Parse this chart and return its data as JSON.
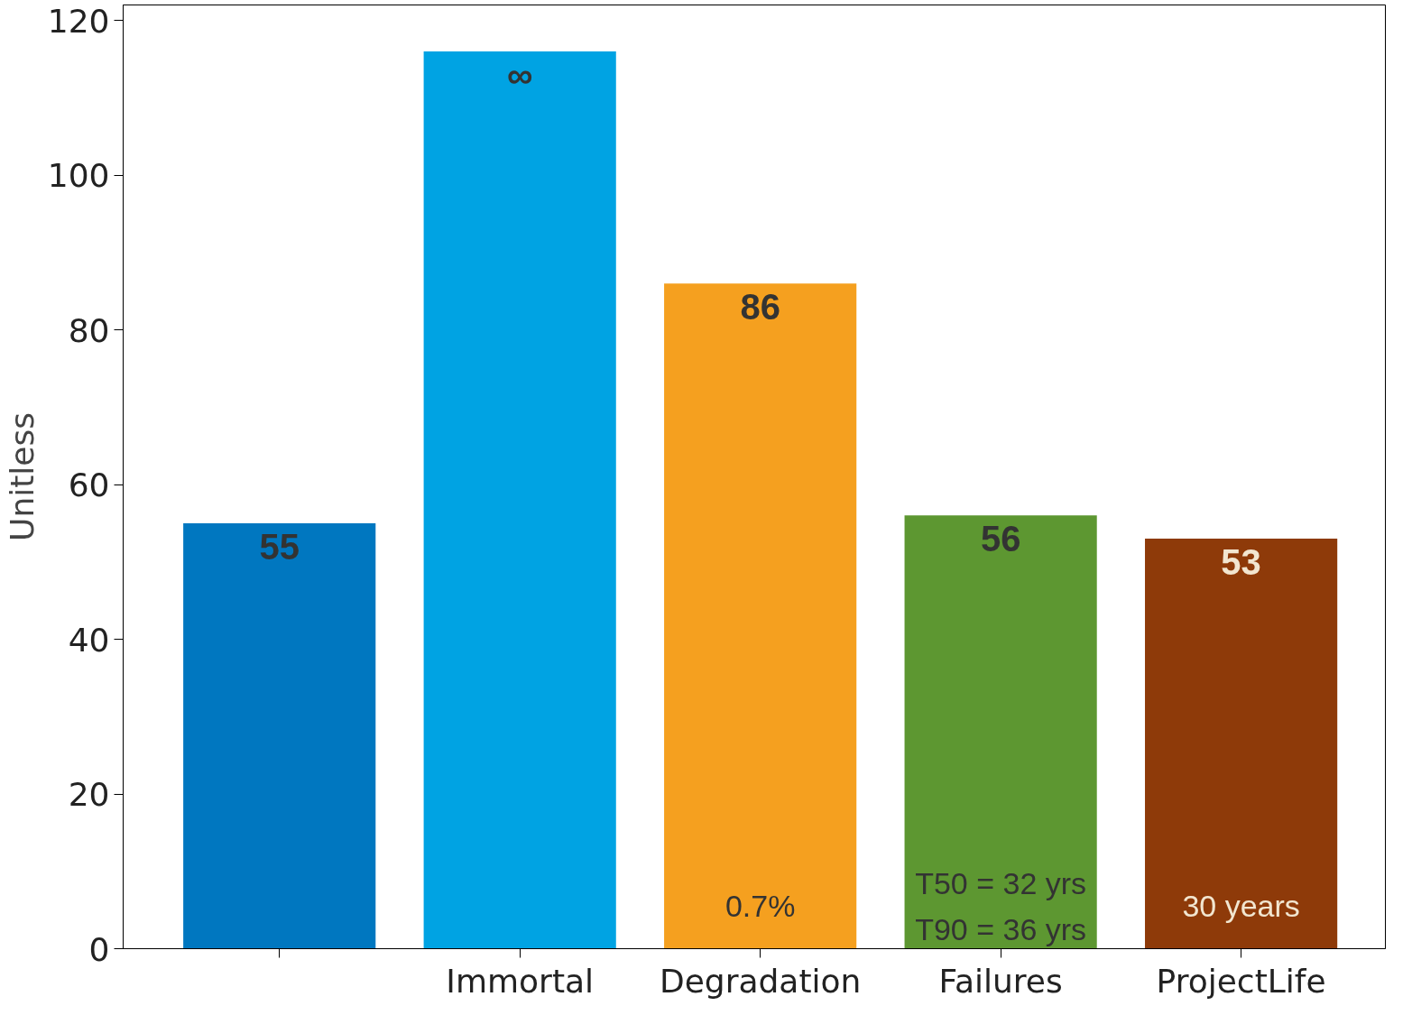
{
  "chart_data": {
    "type": "bar",
    "ylabel": "Unitless",
    "categories": [
      null,
      "Immortal",
      "Degradation",
      "Failures",
      "ProjectLife"
    ],
    "values": [
      55,
      116,
      86,
      56,
      53
    ],
    "colors": [
      "#0077c0",
      "#00a3e3",
      "#f5a01f",
      "#5d9731",
      "#8e3a09"
    ],
    "value_labels": [
      "55",
      "∞",
      "86",
      "56",
      "53"
    ],
    "annotations": [
      "0.7%",
      "T50 = 32 yrs\nT90 = 36 yrs",
      "30 years"
    ],
    "ylim": [
      0,
      122
    ],
    "yticks": [
      0,
      20,
      40,
      60,
      80,
      100,
      120
    ],
    "grid": false
  }
}
